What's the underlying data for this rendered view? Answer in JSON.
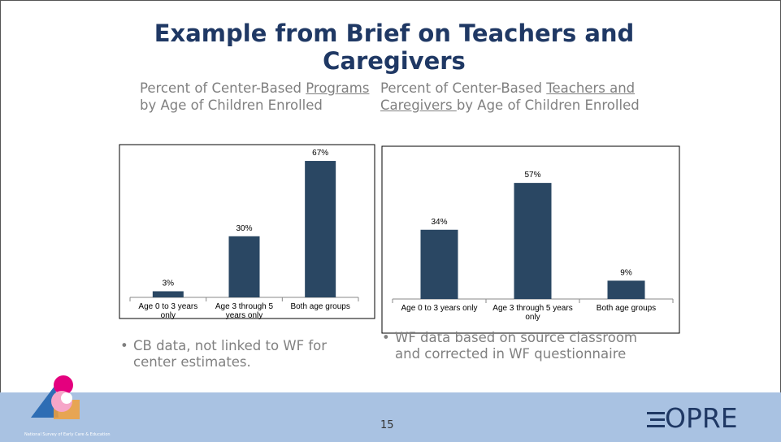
{
  "slide": {
    "title": "Example from Brief on Teachers and Caregivers",
    "page_number": "15",
    "logo": "OPRE",
    "survey_name": "National Survey of Early Care & Education"
  },
  "chart_data": [
    {
      "type": "bar",
      "title": "Percent of Center-Based Programs by Age of Children Enrolled",
      "underlined": "Programs",
      "categories": [
        "Age 0 to 3 years only",
        "Age 3 through 5 years only",
        "Both age groups"
      ],
      "values": [
        3,
        30,
        67
      ],
      "value_labels": [
        "3%",
        "30%",
        "67%"
      ],
      "color": "#2a4763",
      "ylim": [
        0,
        75
      ],
      "note": "CB data, not linked to WF for center estimates."
    },
    {
      "type": "bar",
      "title": "Percent of Center-Based Teachers and Caregivers by Age of Children Enrolled",
      "underlined": "Teachers and Caregivers ",
      "categories": [
        "Age 0 to 3 years only",
        "Age 3 through 5 years only",
        "Both age groups"
      ],
      "values": [
        34,
        57,
        9
      ],
      "value_labels": [
        "34%",
        "57%",
        "9%"
      ],
      "color": "#2a4763",
      "ylim": [
        0,
        75
      ],
      "note": "WF data based on source classroom and corrected in WF questionnaire"
    }
  ]
}
